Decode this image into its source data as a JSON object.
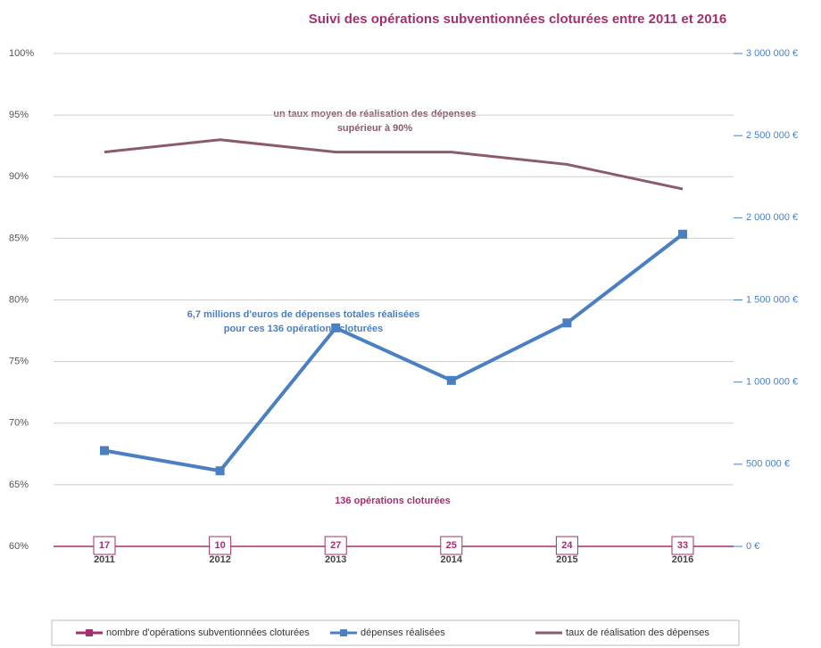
{
  "chart_data": {
    "type": "line",
    "title": "Suivi des opérations subventionnées cloturées entre 2011 et 2016",
    "categories": [
      "2011",
      "2012",
      "2013",
      "2014",
      "2015",
      "2016"
    ],
    "series": [
      {
        "name": "nombre d'opérations subventionnées cloturées",
        "color": "#a3306e",
        "values": [
          17,
          10,
          27,
          25,
          24,
          33
        ]
      },
      {
        "name": "dépenses réalisées",
        "color": "#4a7fc1",
        "axis": "y2",
        "values": [
          583000,
          460000,
          1330000,
          1010000,
          1360000,
          1900000
        ]
      },
      {
        "name": "taux de réalisation des dépenses",
        "color": "#8a5a6e",
        "axis": "y",
        "values": [
          92,
          93,
          92,
          92,
          91,
          89
        ]
      }
    ],
    "ylim": [
      60,
      100
    ],
    "yticks": [
      {
        "value": 60,
        "label": "60%"
      },
      {
        "value": 65,
        "label": "65%"
      },
      {
        "value": 70,
        "label": "70%"
      },
      {
        "value": 75,
        "label": "75%"
      },
      {
        "value": 80,
        "label": "80%"
      },
      {
        "value": 85,
        "label": "85%"
      },
      {
        "value": 90,
        "label": "90%"
      },
      {
        "value": 95,
        "label": "95%"
      },
      {
        "value": 100,
        "label": "100%"
      }
    ],
    "y2lim": [
      0,
      3000000
    ],
    "y2ticks": [
      {
        "value": 0,
        "label": "0 €"
      },
      {
        "value": 500000,
        "label": "500 000 €"
      },
      {
        "value": 1000000,
        "label": "1 000 000 €"
      },
      {
        "value": 1500000,
        "label": "1 500 000 €"
      },
      {
        "value": 2000000,
        "label": "2 000 000 €"
      },
      {
        "value": 2500000,
        "label": "2 500 000 €"
      },
      {
        "value": 3000000,
        "label": "3 000 000 €"
      }
    ],
    "annotations": [
      "un taux moyen de réalisation des dépenses",
      "supérieur à 90%",
      "6,7 millions d'euros de dépenses totales réalisées",
      "pour ces 136 opérations cloturées",
      "136 opérations cloturées"
    ],
    "grid": true
  }
}
